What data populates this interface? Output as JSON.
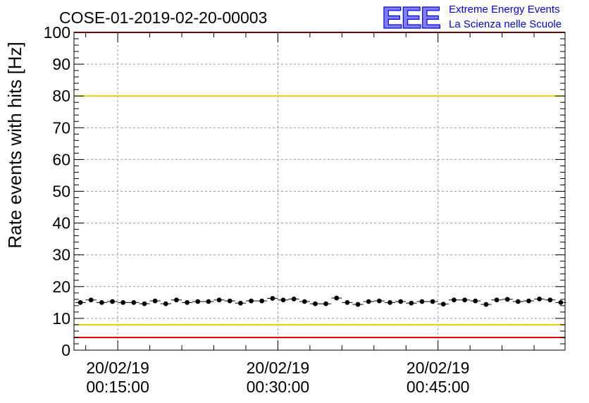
{
  "title": "COSE-01-2019-02-20-00003",
  "logo": {
    "mark": "EEE",
    "line1": "Extreme Energy Events",
    "line2": "La Scienza nelle Scuole",
    "color": "#0000ee"
  },
  "chart_data": {
    "type": "scatter",
    "ylabel": "Rate events with hits [Hz]",
    "xlabel": "",
    "ylim": [
      0,
      100
    ],
    "xlim_minutes": [
      10.9,
      56.9
    ],
    "yticks": [
      "0",
      "10",
      "20",
      "30",
      "40",
      "50",
      "60",
      "70",
      "80",
      "90",
      "100"
    ],
    "xticks": [
      {
        "minute": 15,
        "date": "20/02/19",
        "time": "00:15:00"
      },
      {
        "minute": 30,
        "date": "20/02/19",
        "time": "00:30:00"
      },
      {
        "minute": 45,
        "date": "20/02/19",
        "time": "00:45:00"
      }
    ],
    "grid": true,
    "reference_lines": [
      {
        "y": 100,
        "color": "#ee0000"
      },
      {
        "y": 80,
        "color": "#eecc00"
      },
      {
        "y": 8,
        "color": "#eecc00"
      },
      {
        "y": 4,
        "color": "#ee0000"
      }
    ],
    "series": [
      {
        "marker_color": "#000000",
        "x_minutes": [
          11.5,
          12.5,
          13.5,
          14.5,
          15.5,
          16.5,
          17.5,
          18.5,
          19.5,
          20.5,
          21.5,
          22.5,
          23.5,
          24.5,
          25.5,
          26.5,
          27.5,
          28.5,
          29.5,
          30.5,
          31.5,
          32.5,
          33.5,
          34.5,
          35.5,
          36.5,
          37.5,
          38.5,
          39.5,
          40.5,
          41.5,
          42.5,
          43.5,
          44.5,
          45.5,
          46.5,
          47.5,
          48.5,
          49.5,
          50.5,
          51.5,
          52.5,
          53.5,
          54.5,
          55.5,
          56.5
        ],
        "y": [
          15.0,
          15.8,
          15.0,
          15.3,
          15.0,
          15.0,
          14.6,
          15.5,
          14.6,
          15.8,
          15.0,
          15.3,
          15.3,
          15.8,
          15.5,
          14.8,
          15.5,
          15.5,
          16.3,
          15.8,
          16.1,
          15.3,
          14.6,
          14.6,
          16.4,
          15.0,
          14.4,
          15.3,
          15.5,
          15.0,
          15.3,
          14.8,
          15.3,
          15.3,
          14.5,
          15.8,
          15.8,
          15.5,
          14.4,
          15.8,
          16.0,
          15.3,
          15.5,
          16.1,
          15.8,
          15.0
        ],
        "err": [
          0.6,
          0.6,
          0.6,
          0.6,
          0.6,
          0.6,
          0.6,
          0.6,
          0.6,
          0.6,
          0.6,
          0.6,
          0.6,
          0.6,
          0.6,
          0.6,
          0.6,
          0.6,
          0.6,
          0.6,
          0.6,
          0.6,
          0.6,
          0.6,
          0.6,
          0.6,
          0.6,
          0.6,
          0.6,
          0.6,
          0.6,
          0.6,
          0.6,
          0.6,
          0.6,
          0.6,
          0.6,
          0.6,
          0.6,
          0.6,
          0.6,
          0.6,
          0.6,
          0.6,
          0.6,
          0.6
        ]
      }
    ]
  }
}
